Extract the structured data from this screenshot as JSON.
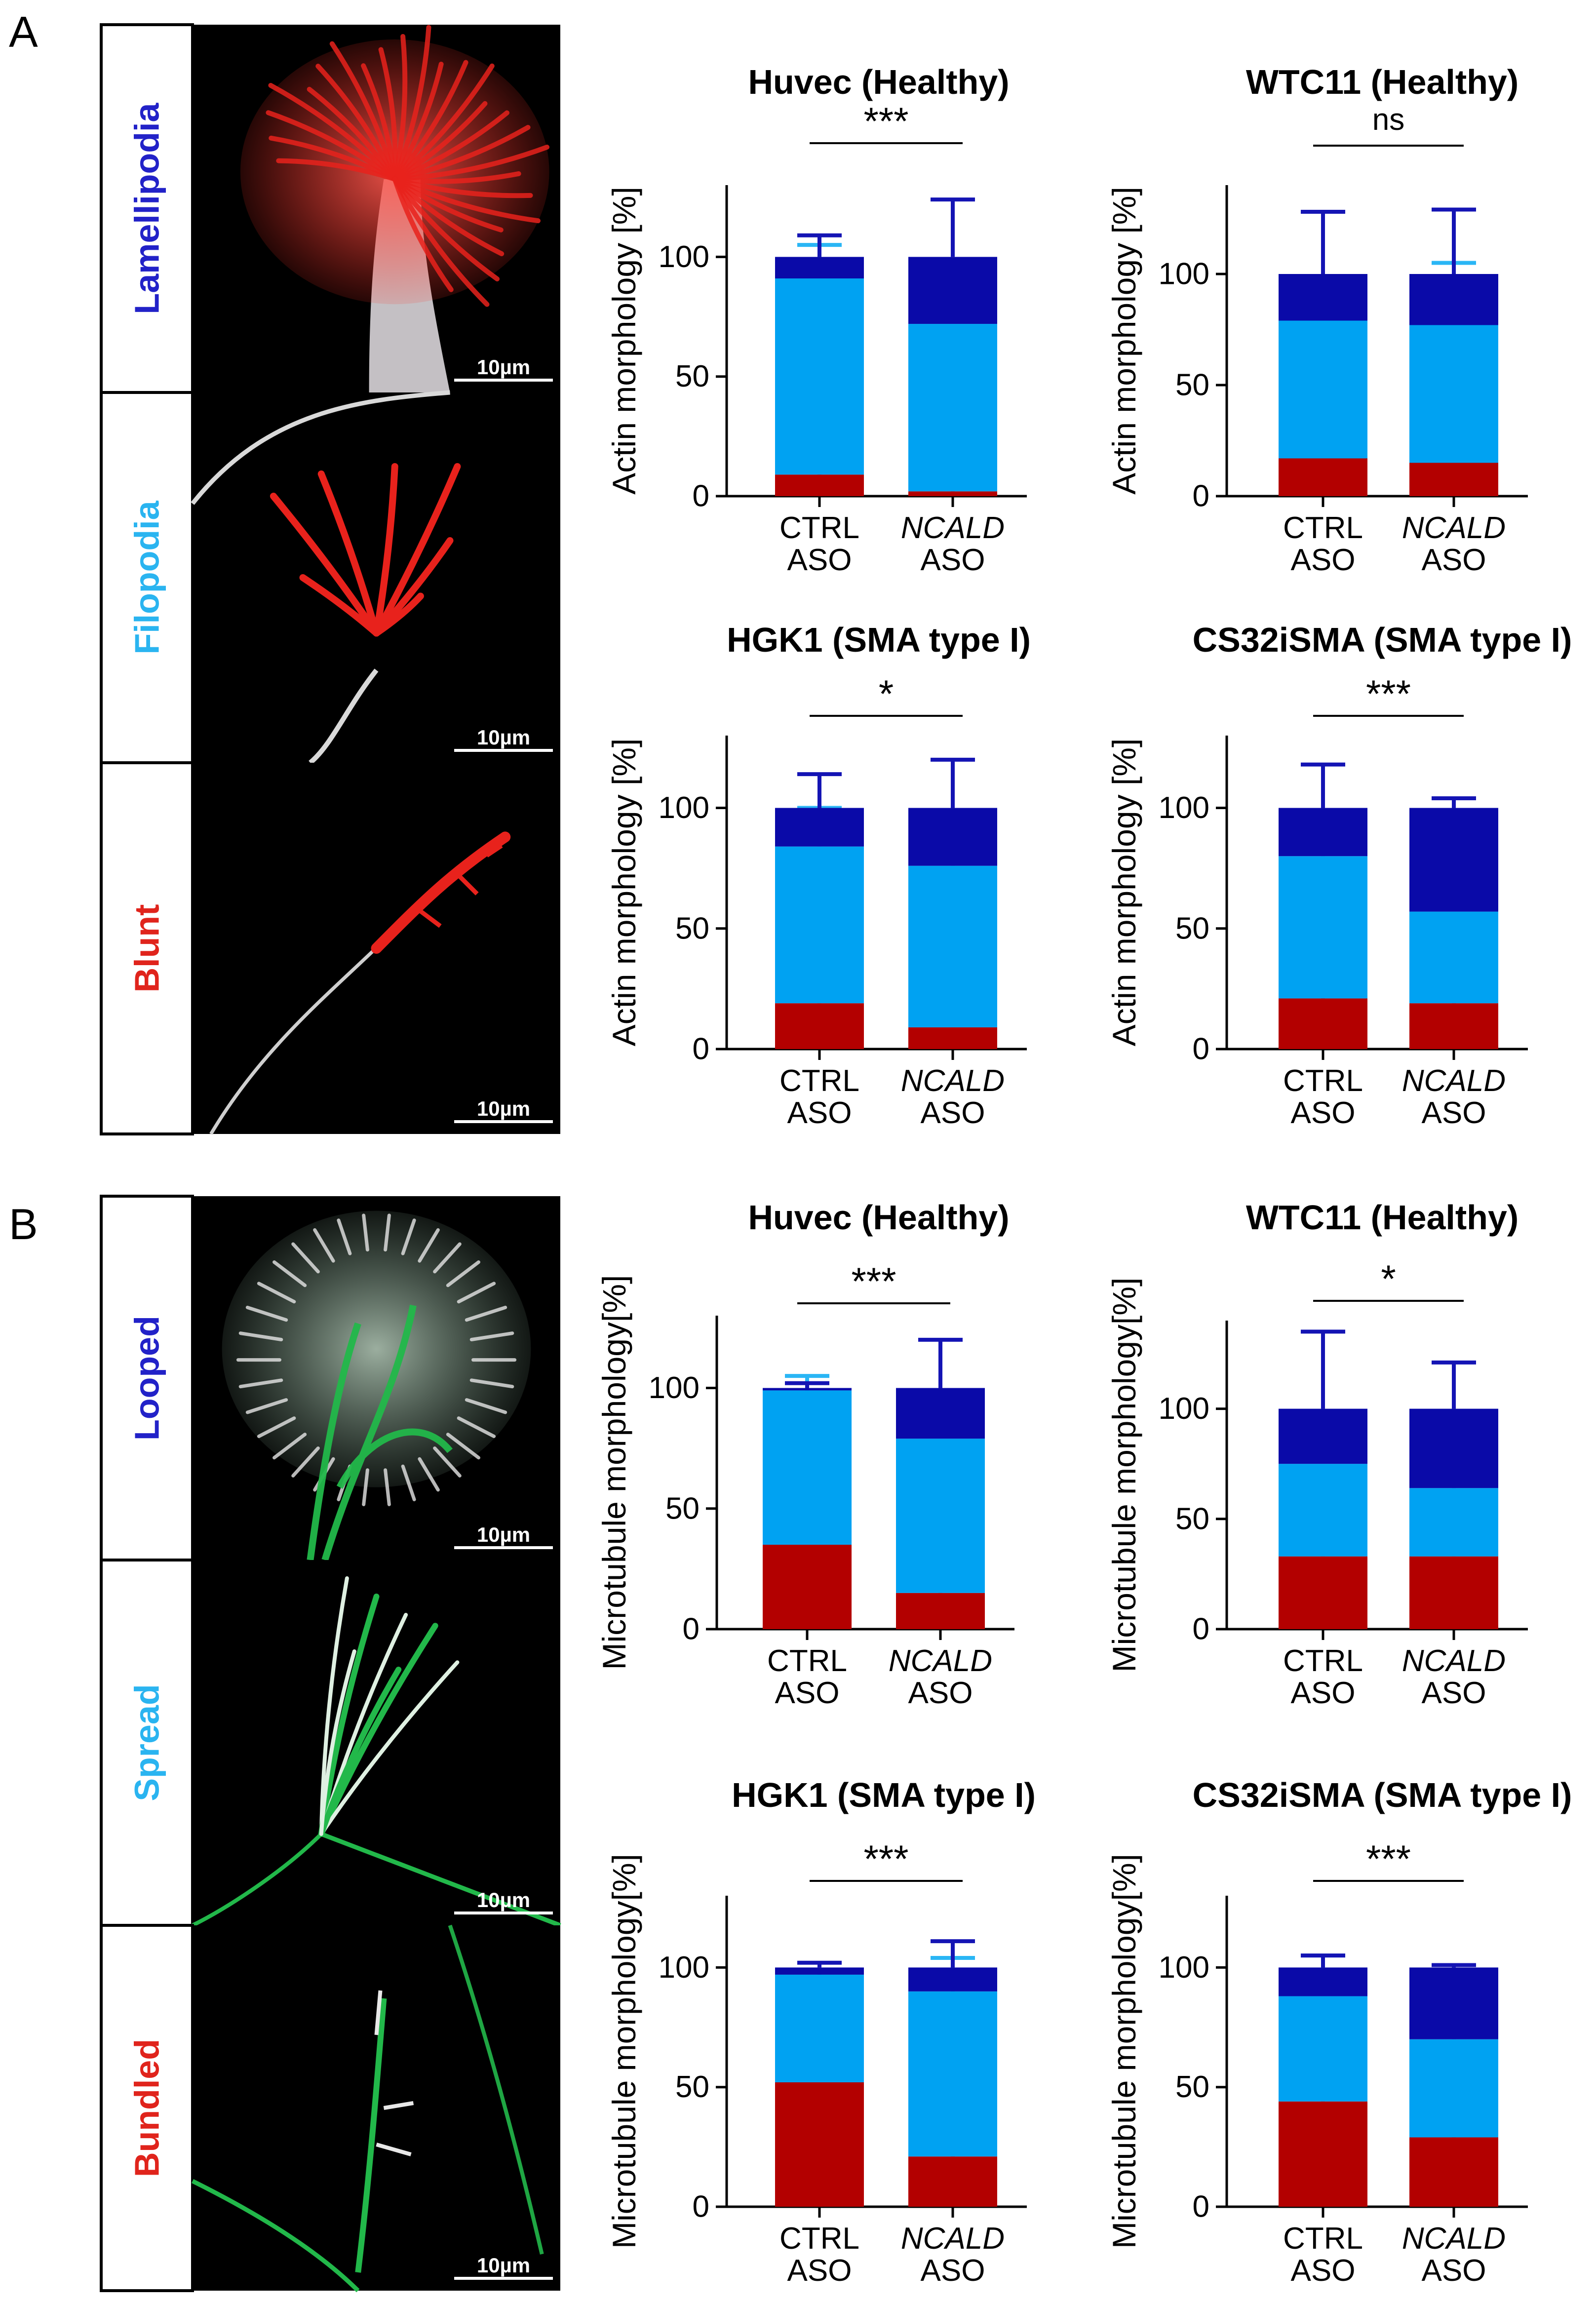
{
  "colors": {
    "red": "#b30000",
    "light_blue": "#00a2f2",
    "dark_blue": "#0a0aa8",
    "err_red": "#c80000",
    "err_light": "#2ab6f5",
    "err_dark": "#1414b4",
    "label_red": "#e0241c",
    "label_light": "#2ab4f0",
    "label_dark": "#2222c8",
    "actin": "#e8221c",
    "tubulin": "#22b84a"
  },
  "panels": [
    {
      "letter": "A",
      "micrographs": [
        {
          "label": "Lamellipodia",
          "color_key": "label_dark",
          "scale_bar": "10µm",
          "channel": "actin"
        },
        {
          "label": "Filopodia",
          "color_key": "label_light",
          "scale_bar": "10µm",
          "channel": "actin"
        },
        {
          "label": "Blunt",
          "color_key": "label_red",
          "scale_bar": "10µm",
          "channel": "actin"
        }
      ]
    },
    {
      "letter": "B",
      "micrographs": [
        {
          "label": "Looped",
          "color_key": "label_dark",
          "scale_bar": "10µm",
          "channel": "tubulin"
        },
        {
          "label": "Spread",
          "color_key": "label_light",
          "scale_bar": "10µm",
          "channel": "tubulin"
        },
        {
          "label": "Bundled",
          "color_key": "label_red",
          "scale_bar": "10µm",
          "channel": "tubulin"
        }
      ]
    }
  ],
  "chart_data": [
    {
      "type": "bar",
      "stacked": true,
      "title": "Huvec (Healthy)",
      "ylabel": "Actin morphology [%]",
      "categories": [
        [
          "CTRL",
          "ASO"
        ],
        [
          "NCALD",
          "ASO"
        ]
      ],
      "italic_first_line": [
        false,
        true
      ],
      "ylim": [
        0,
        130
      ],
      "yticks": [
        0,
        50,
        100
      ],
      "segments": [
        {
          "values": [
            9,
            2
          ],
          "errors": [
            8,
            2
          ],
          "color_key": "red"
        },
        {
          "values": [
            82,
            70
          ],
          "errors": [
            14,
            24
          ],
          "color_key": "light_blue"
        },
        {
          "values": [
            9,
            28
          ],
          "errors": [
            9,
            24
          ],
          "color_key": "dark_blue"
        }
      ],
      "significance": "***"
    },
    {
      "type": "bar",
      "stacked": true,
      "title": "WTC11 (Healthy)",
      "ylabel": "Actin morphology [%]",
      "categories": [
        [
          "CTRL",
          "ASO"
        ],
        [
          "NCALD",
          "ASO"
        ]
      ],
      "italic_first_line": [
        false,
        true
      ],
      "ylim": [
        0,
        140
      ],
      "yticks": [
        0,
        50,
        100
      ],
      "segments": [
        {
          "values": [
            17,
            15
          ],
          "errors": [
            19,
            10
          ],
          "color_key": "red"
        },
        {
          "values": [
            62,
            62
          ],
          "errors": [
            15,
            28
          ],
          "color_key": "light_blue"
        },
        {
          "values": [
            21,
            23
          ],
          "errors": [
            28,
            29
          ],
          "color_key": "dark_blue"
        }
      ],
      "significance": "ns"
    },
    {
      "type": "bar",
      "stacked": true,
      "title": "HGK1 (SMA type I)",
      "ylabel": "Actin morphology [%]",
      "categories": [
        [
          "CTRL",
          "ASO"
        ],
        [
          "NCALD",
          "ASO"
        ]
      ],
      "italic_first_line": [
        false,
        true
      ],
      "ylim": [
        0,
        130
      ],
      "yticks": [
        0,
        50,
        100
      ],
      "segments": [
        {
          "values": [
            19,
            9
          ],
          "errors": [
            6,
            6
          ],
          "color_key": "red"
        },
        {
          "values": [
            65,
            67
          ],
          "errors": [
            16,
            18
          ],
          "color_key": "light_blue"
        },
        {
          "values": [
            16,
            24
          ],
          "errors": [
            14,
            20
          ],
          "color_key": "dark_blue"
        }
      ],
      "significance": "*"
    },
    {
      "type": "bar",
      "stacked": true,
      "title": "CS32iSMA (SMA type I)",
      "ylabel": "Actin morphology [%]",
      "categories": [
        [
          "CTRL",
          "ASO"
        ],
        [
          "NCALD",
          "ASO"
        ]
      ],
      "italic_first_line": [
        false,
        true
      ],
      "ylim": [
        0,
        130
      ],
      "yticks": [
        0,
        50,
        100
      ],
      "segments": [
        {
          "values": [
            21,
            19
          ],
          "errors": [
            6,
            8
          ],
          "color_key": "red"
        },
        {
          "values": [
            59,
            38
          ],
          "errors": [
            13,
            11
          ],
          "color_key": "light_blue"
        },
        {
          "values": [
            20,
            43
          ],
          "errors": [
            18,
            4
          ],
          "color_key": "dark_blue"
        }
      ],
      "significance": "***"
    },
    {
      "type": "bar",
      "stacked": true,
      "title": "Huvec (Healthy)",
      "ylabel": "Microtubule morphology[%]",
      "categories": [
        [
          "CTRL",
          "ASO"
        ],
        [
          "NCALD",
          "ASO"
        ]
      ],
      "italic_first_line": [
        false,
        true
      ],
      "ylim": [
        0,
        130
      ],
      "yticks": [
        0,
        50,
        100
      ],
      "segments": [
        {
          "values": [
            35,
            15
          ],
          "errors": [
            8,
            14
          ],
          "color_key": "red"
        },
        {
          "values": [
            64,
            64
          ],
          "errors": [
            6,
            14
          ],
          "color_key": "light_blue"
        },
        {
          "values": [
            1,
            21
          ],
          "errors": [
            2,
            20
          ],
          "color_key": "dark_blue"
        }
      ],
      "significance": "***"
    },
    {
      "type": "bar",
      "stacked": true,
      "title": "WTC11 (Healthy)",
      "ylabel": "Microtubule morphology[%]",
      "categories": [
        [
          "CTRL",
          "ASO"
        ],
        [
          "NCALD",
          "ASO"
        ]
      ],
      "italic_first_line": [
        false,
        true
      ],
      "ylim": [
        0,
        140
      ],
      "yticks": [
        0,
        50,
        100
      ],
      "segments": [
        {
          "values": [
            33,
            33
          ],
          "errors": [
            22,
            11
          ],
          "color_key": "red"
        },
        {
          "values": [
            42,
            31
          ],
          "errors": [
            15,
            12
          ],
          "color_key": "light_blue"
        },
        {
          "values": [
            25,
            36
          ],
          "errors": [
            35,
            21
          ],
          "color_key": "dark_blue"
        }
      ],
      "significance": "*"
    },
    {
      "type": "bar",
      "stacked": true,
      "title": "HGK1 (SMA type I)",
      "ylabel": "Microtubule morphology[%]",
      "categories": [
        [
          "CTRL",
          "ASO"
        ],
        [
          "NCALD",
          "ASO"
        ]
      ],
      "italic_first_line": [
        false,
        true
      ],
      "ylim": [
        0,
        130
      ],
      "yticks": [
        0,
        50,
        100
      ],
      "segments": [
        {
          "values": [
            52,
            21
          ],
          "errors": [
            11,
            9
          ],
          "color_key": "red"
        },
        {
          "values": [
            45,
            69
          ],
          "errors": [
            2,
            14
          ],
          "color_key": "light_blue"
        },
        {
          "values": [
            3,
            10
          ],
          "errors": [
            2,
            11
          ],
          "color_key": "dark_blue"
        }
      ],
      "significance": "***"
    },
    {
      "type": "bar",
      "stacked": true,
      "title": "CS32iSMA (SMA type I)",
      "ylabel": "Microtubule morphology[%]",
      "categories": [
        [
          "CTRL",
          "ASO"
        ],
        [
          "NCALD",
          "ASO"
        ]
      ],
      "italic_first_line": [
        false,
        true
      ],
      "ylim": [
        0,
        130
      ],
      "yticks": [
        0,
        50,
        100
      ],
      "segments": [
        {
          "values": [
            44,
            29
          ],
          "errors": [
            18,
            4
          ],
          "color_key": "red"
        },
        {
          "values": [
            44,
            41
          ],
          "errors": [
            17,
            4
          ],
          "color_key": "light_blue"
        },
        {
          "values": [
            12,
            30
          ],
          "errors": [
            5,
            1
          ],
          "color_key": "dark_blue"
        }
      ],
      "significance": "***"
    }
  ]
}
